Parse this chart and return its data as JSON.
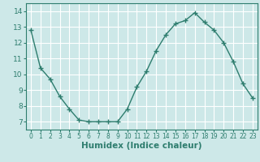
{
  "x": [
    0,
    1,
    2,
    3,
    4,
    5,
    6,
    7,
    8,
    9,
    10,
    11,
    12,
    13,
    14,
    15,
    16,
    17,
    18,
    19,
    20,
    21,
    22,
    23
  ],
  "y": [
    12.8,
    10.4,
    9.7,
    8.6,
    7.8,
    7.1,
    7.0,
    7.0,
    7.0,
    7.0,
    7.8,
    9.2,
    10.2,
    11.5,
    12.5,
    13.2,
    13.4,
    13.9,
    13.3,
    12.8,
    12.0,
    10.8,
    9.4,
    8.5
  ],
  "xlabel": "Humidex (Indice chaleur)",
  "xlim": [
    -0.5,
    23.5
  ],
  "ylim": [
    6.5,
    14.5
  ],
  "yticks": [
    7,
    8,
    9,
    10,
    11,
    12,
    13,
    14
  ],
  "line_color": "#2e7d6e",
  "bg_color": "#cde8e8",
  "grid_color": "#ffffff",
  "tick_label_color": "#2e7d6e",
  "xlabel_color": "#2e7d6e",
  "marker": "+"
}
